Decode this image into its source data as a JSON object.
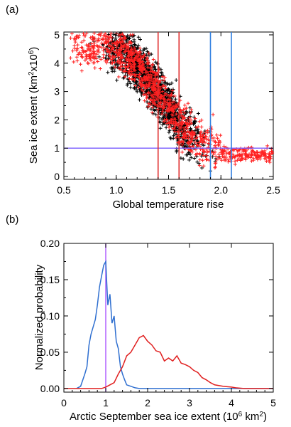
{
  "chart_data": [
    {
      "panel_label": "(a)",
      "type": "scatter",
      "xlabel": "Global temperature rise",
      "ylabel_main": "Sea ice extent (km",
      "ylabel_sup1": "2",
      "ylabel_mid": "x10",
      "ylabel_sup2": "6",
      "ylabel_end": ")",
      "xlim": [
        0.5,
        2.5
      ],
      "ylim": [
        -0.1,
        5.1
      ],
      "xticks": [
        "0.5",
        "1.0",
        "1.5",
        "2.0",
        "2.5"
      ],
      "yticks": [
        "0",
        "1",
        "2",
        "3",
        "4",
        "5"
      ],
      "series": [
        {
          "color": "#000000",
          "marker": "+",
          "description_only": true
        },
        {
          "color": "#ff2020",
          "marker": "+",
          "description_only": true
        }
      ],
      "hlines": [
        {
          "y": 1.0,
          "color": "#7a5cff"
        }
      ],
      "vlines": [
        {
          "x": 1.4,
          "color": "#e03030"
        },
        {
          "x": 1.6,
          "color": "#e03030"
        },
        {
          "x": 1.9,
          "color": "#2f7fe0"
        },
        {
          "x": 2.1,
          "color": "#2f7fe0"
        }
      ]
    },
    {
      "panel_label": "(b)",
      "type": "line",
      "xlabel_main": "Arctic September sea ice extent (10",
      "xlabel_sup1": "6",
      "xlabel_mid": " km",
      "xlabel_sup2": "2",
      "xlabel_end": ")",
      "ylabel": "Normalized probability",
      "xlim": [
        0,
        5
      ],
      "ylim": [
        -0.005,
        0.2
      ],
      "xticks": [
        "0",
        "1",
        "2",
        "3",
        "4",
        "5"
      ],
      "yticks": [
        "0.00",
        "0.05",
        "0.10",
        "0.15",
        "0.20"
      ],
      "vlines": [
        {
          "x": 1.0,
          "color": "#b060ff"
        }
      ],
      "series": [
        {
          "color": "#2f6fd0",
          "x": [
            0.3,
            0.4,
            0.5,
            0.55,
            0.6,
            0.65,
            0.7,
            0.75,
            0.8,
            0.85,
            0.9,
            0.95,
            1.0,
            1.05,
            1.1,
            1.15,
            1.2,
            1.25,
            1.3,
            1.35,
            1.4,
            1.45,
            1.5,
            1.6,
            1.7,
            1.8,
            2.0,
            3.0,
            3.5,
            4.0,
            5.0
          ],
          "y": [
            0.0,
            0.003,
            0.02,
            0.03,
            0.06,
            0.075,
            0.085,
            0.095,
            0.115,
            0.14,
            0.155,
            0.17,
            0.175,
            0.115,
            0.13,
            0.09,
            0.1,
            0.065,
            0.055,
            0.03,
            0.02,
            0.012,
            0.005,
            0.003,
            0.001,
            0.0,
            0.0,
            0.0,
            0.0,
            0.0,
            0.0
          ]
        },
        {
          "color": "#e02020",
          "x": [
            0.0,
            0.9,
            1.0,
            1.1,
            1.2,
            1.3,
            1.4,
            1.5,
            1.6,
            1.7,
            1.8,
            1.9,
            2.0,
            2.1,
            2.2,
            2.3,
            2.4,
            2.5,
            2.6,
            2.7,
            2.8,
            2.9,
            3.0,
            3.1,
            3.2,
            3.3,
            3.4,
            3.5,
            3.6,
            3.7,
            3.8,
            3.9,
            4.0,
            4.1,
            4.2,
            4.3,
            5.0
          ],
          "y": [
            0.0,
            0.0,
            0.002,
            0.005,
            0.008,
            0.02,
            0.03,
            0.045,
            0.05,
            0.06,
            0.07,
            0.073,
            0.065,
            0.06,
            0.052,
            0.05,
            0.038,
            0.042,
            0.038,
            0.045,
            0.035,
            0.033,
            0.03,
            0.025,
            0.022,
            0.015,
            0.012,
            0.008,
            0.005,
            0.004,
            0.003,
            0.0025,
            0.002,
            0.001,
            0.0005,
            0.0,
            0.0
          ]
        }
      ]
    }
  ]
}
